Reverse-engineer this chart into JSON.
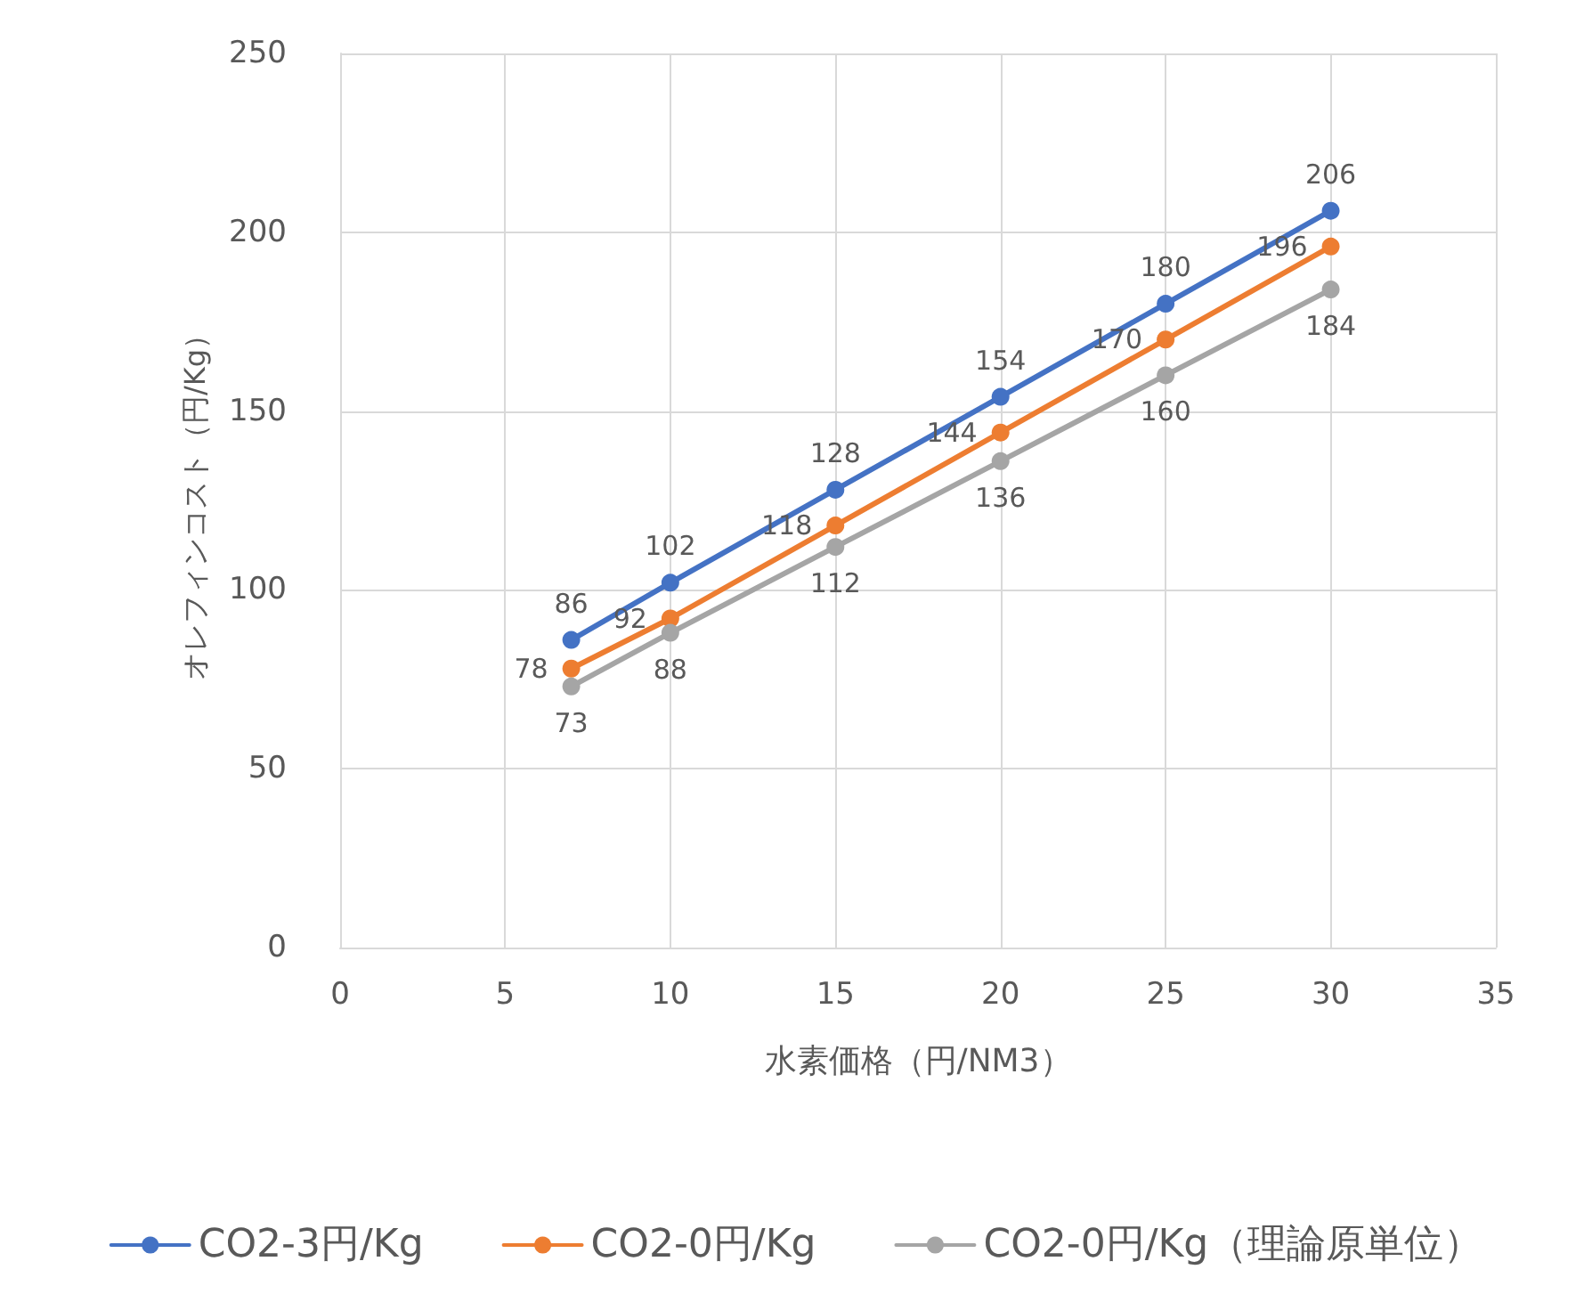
{
  "chart_data": {
    "type": "line",
    "xlabel": "水素価格（円/NM3）",
    "ylabel": "オレフィンコスト（円/Kg）",
    "x": [
      7,
      10,
      15,
      20,
      25,
      30
    ],
    "series": [
      {
        "name": "CO2-3円/Kg",
        "color": "#4472c4",
        "values": [
          86,
          102,
          128,
          154,
          180,
          206
        ]
      },
      {
        "name": "CO2-0円/Kg",
        "color": "#ed7d31",
        "values": [
          78,
          92,
          118,
          144,
          170,
          196
        ]
      },
      {
        "name": "CO2-0円/Kg（理論原単位）",
        "color": "#a5a5a5",
        "values": [
          73,
          88,
          112,
          136,
          160,
          184
        ]
      }
    ],
    "xlim": [
      0,
      35
    ],
    "xticks": [
      0,
      5,
      10,
      15,
      20,
      25,
      30,
      35
    ],
    "ylim": [
      0,
      250
    ],
    "yticks": [
      0,
      50,
      100,
      150,
      200,
      250
    ],
    "grid": true,
    "legend": "bottom",
    "marker": "circle",
    "line_style": "solid",
    "data_labels": true
  }
}
